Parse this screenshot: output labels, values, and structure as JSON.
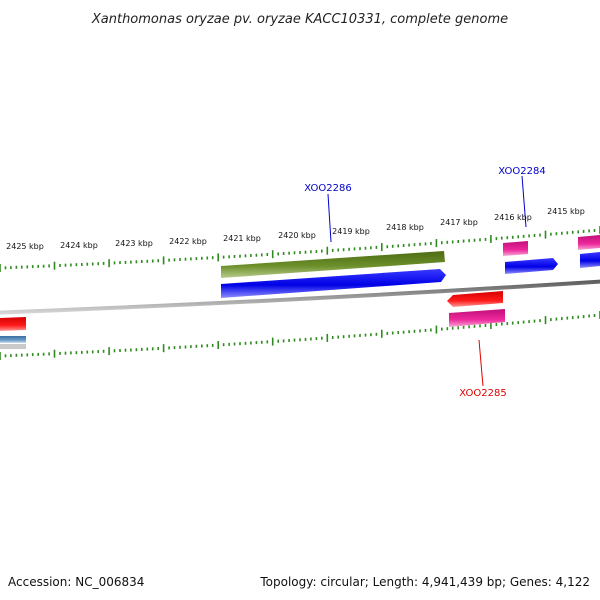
{
  "title": "Xanthomonas oryzae pv. oryzae KACC10331, complete genome",
  "footer": {
    "accession": "Accession: NC_006834",
    "summary": "Topology: circular; Length: 4,941,439 bp; Genes: 4,122"
  },
  "colors": {
    "backbone": "#7f7f7f",
    "ticks": "#2e8b1e",
    "blue_gene": "#0000ee",
    "green_gene": "#5a7d1e",
    "red_gene": "#ee0000",
    "pink_gene": "#e0138c",
    "steelblue_gene": "#4a82b4",
    "label_forward": "#0000cc",
    "label_reverse": "#dd0000"
  },
  "scale_labels": [
    "2425 kbp",
    "2424 kbp",
    "2423 kbp",
    "2422 kbp",
    "2421 kbp",
    "2420 kbp",
    "2419 kbp",
    "2418 kbp",
    "2417 kbp",
    "2416 kbp",
    "2415 kbp"
  ],
  "gene_labels": [
    {
      "id": "XOO2286",
      "strand": "forward"
    },
    {
      "id": "XOO2284",
      "strand": "forward"
    },
    {
      "id": "XOO2285",
      "strand": "reverse"
    }
  ]
}
